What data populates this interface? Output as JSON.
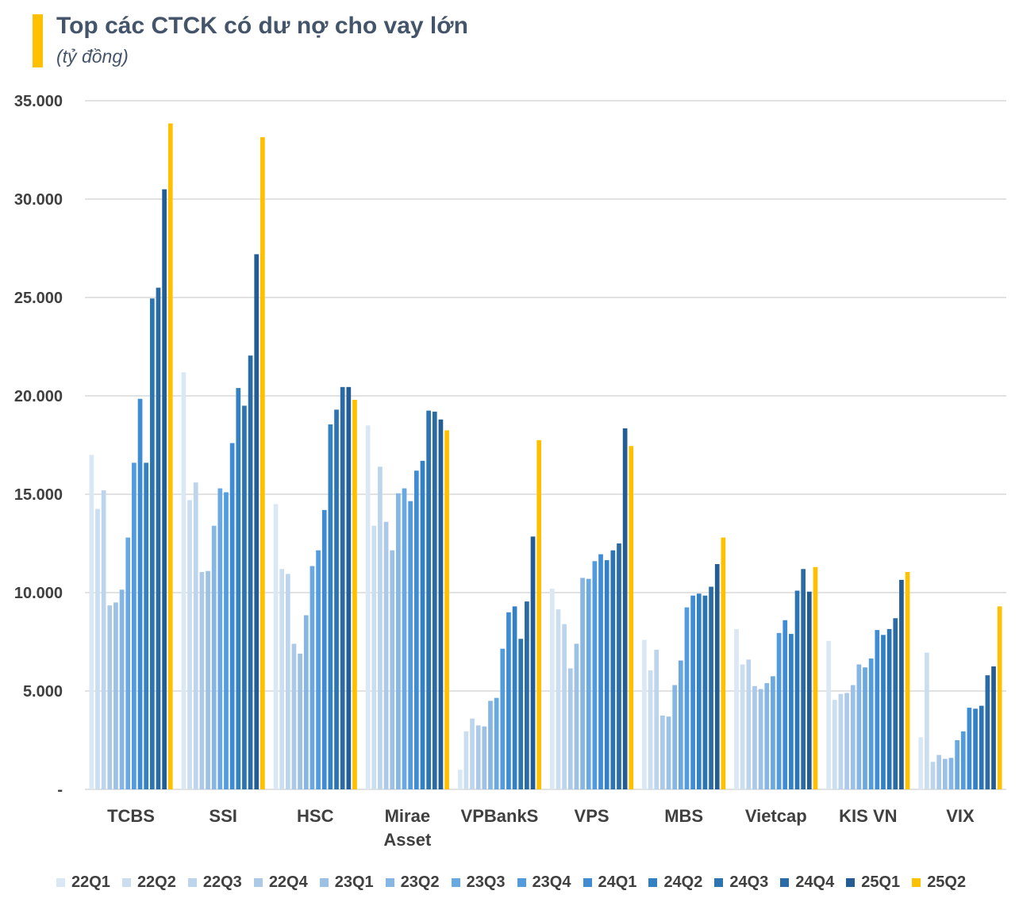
{
  "header": {
    "title": "Top các CTCK có dư nợ cho vay lớn",
    "subtitle": "(tỷ đồng)",
    "accent_color": "#ffc000"
  },
  "chart_data": {
    "type": "bar",
    "title": "Top các CTCK có dư nợ cho vay lớn",
    "subtitle": "(tỷ đồng)",
    "xlabel": "",
    "ylabel": "",
    "ylim": [
      0,
      35000
    ],
    "grid": true,
    "legend_position": "bottom",
    "yticks": [
      "-",
      "5.000",
      "10.000",
      "15.000",
      "20.000",
      "25.000",
      "30.000",
      "35.000"
    ],
    "categories": [
      [
        "TCBS"
      ],
      [
        "SSI"
      ],
      [
        "HSC"
      ],
      [
        "Mirae",
        "Asset"
      ],
      [
        "VPBankS"
      ],
      [
        "VPS"
      ],
      [
        "MBS"
      ],
      [
        "Vietcap"
      ],
      [
        "KIS VN"
      ],
      [
        "VIX"
      ]
    ],
    "series": [
      {
        "name": "22Q1",
        "color": "#dae8f5",
        "values": [
          17000,
          21200,
          14500,
          18500,
          1000,
          10200,
          7600,
          8150,
          7550,
          2650
        ]
      },
      {
        "name": "22Q2",
        "color": "#cbdef0",
        "values": [
          14250,
          14700,
          11200,
          13400,
          2950,
          9150,
          6050,
          6350,
          4550,
          6950
        ]
      },
      {
        "name": "22Q3",
        "color": "#bcd5ec",
        "values": [
          15200,
          15600,
          10950,
          16400,
          3600,
          8400,
          7100,
          6600,
          4850,
          1400
        ]
      },
      {
        "name": "22Q4",
        "color": "#acc9e8",
        "values": [
          9350,
          11050,
          7400,
          13600,
          3250,
          6150,
          3750,
          5250,
          4900,
          1750
        ]
      },
      {
        "name": "23Q1",
        "color": "#9dc0e5",
        "values": [
          9500,
          11100,
          6900,
          12150,
          3200,
          7400,
          3700,
          5100,
          5300,
          1550
        ]
      },
      {
        "name": "23Q2",
        "color": "#85b6e5",
        "values": [
          10150,
          13400,
          8850,
          15050,
          4500,
          10750,
          5300,
          5400,
          6350,
          1600
        ]
      },
      {
        "name": "23Q3",
        "color": "#6aa8e2",
        "values": [
          12800,
          15300,
          11350,
          15300,
          4650,
          10700,
          6550,
          5750,
          6200,
          2500
        ]
      },
      {
        "name": "23Q4",
        "color": "#529bdd",
        "values": [
          16600,
          15100,
          12150,
          14650,
          7150,
          11600,
          9250,
          7950,
          6650,
          2950
        ]
      },
      {
        "name": "24Q1",
        "color": "#3f8cd2",
        "values": [
          19850,
          17600,
          14200,
          16200,
          9000,
          11950,
          9850,
          8600,
          8100,
          4150
        ]
      },
      {
        "name": "24Q2",
        "color": "#3380c3",
        "values": [
          16600,
          20400,
          18550,
          16700,
          9300,
          11650,
          9950,
          7900,
          7850,
          4100
        ]
      },
      {
        "name": "24Q3",
        "color": "#2d74b3",
        "values": [
          24950,
          19500,
          19300,
          19250,
          7650,
          12150,
          9850,
          10100,
          8150,
          4250
        ]
      },
      {
        "name": "24Q4",
        "color": "#2b6ba5",
        "values": [
          25500,
          22050,
          20450,
          19200,
          9550,
          12500,
          10300,
          11200,
          8700,
          5800
        ]
      },
      {
        "name": "25Q1",
        "color": "#245d93",
        "values": [
          30500,
          27200,
          20450,
          18800,
          12850,
          18350,
          11450,
          10050,
          10650,
          6250
        ]
      },
      {
        "name": "25Q2",
        "color": "#ffc000",
        "values": [
          33850,
          33150,
          19800,
          18250,
          17750,
          17450,
          12800,
          11300,
          11050,
          9300
        ]
      }
    ]
  }
}
